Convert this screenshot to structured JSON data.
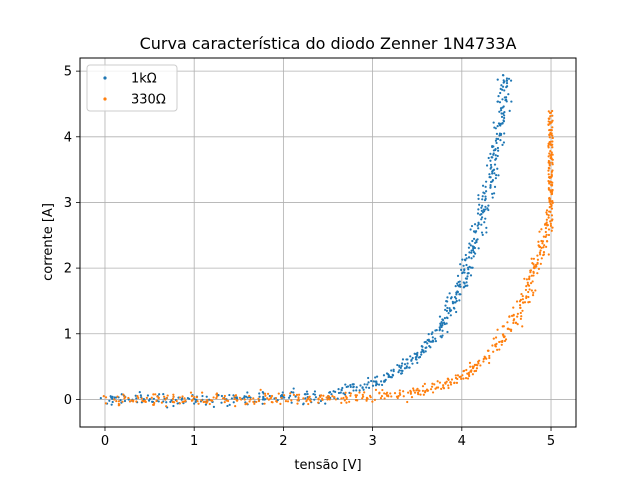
{
  "chart_data": {
    "type": "scatter",
    "title": "Curva característica do diodo Zenner 1N4733A",
    "xlabel": "tensão [V]",
    "ylabel": "corrente [A]",
    "xlim": [
      -0.28,
      5.28
    ],
    "ylim": [
      -0.42,
      5.2
    ],
    "xticks": [
      0,
      1,
      2,
      3,
      4,
      5
    ],
    "yticks": [
      0,
      1,
      2,
      3,
      4,
      5
    ],
    "grid": true,
    "legend_position": "top-left",
    "series": [
      {
        "name": "1kΩ",
        "color": "#1f77b4",
        "model": {
          "a": 0.0006,
          "b": 2.0,
          "v_start": -0.02,
          "v_knee": 4.76,
          "i_max": 4.97,
          "noise_v": 0.04,
          "noise_i": 0.045,
          "count": 600
        }
      },
      {
        "name": "330Ω",
        "color": "#ff7f0e",
        "model": {
          "a": 0.0001,
          "b": 2.05,
          "v_start": 0.05,
          "v_knee": 4.97,
          "i_max": 4.38,
          "noise_v": 0.04,
          "noise_i": 0.045,
          "count": 600
        }
      }
    ]
  }
}
